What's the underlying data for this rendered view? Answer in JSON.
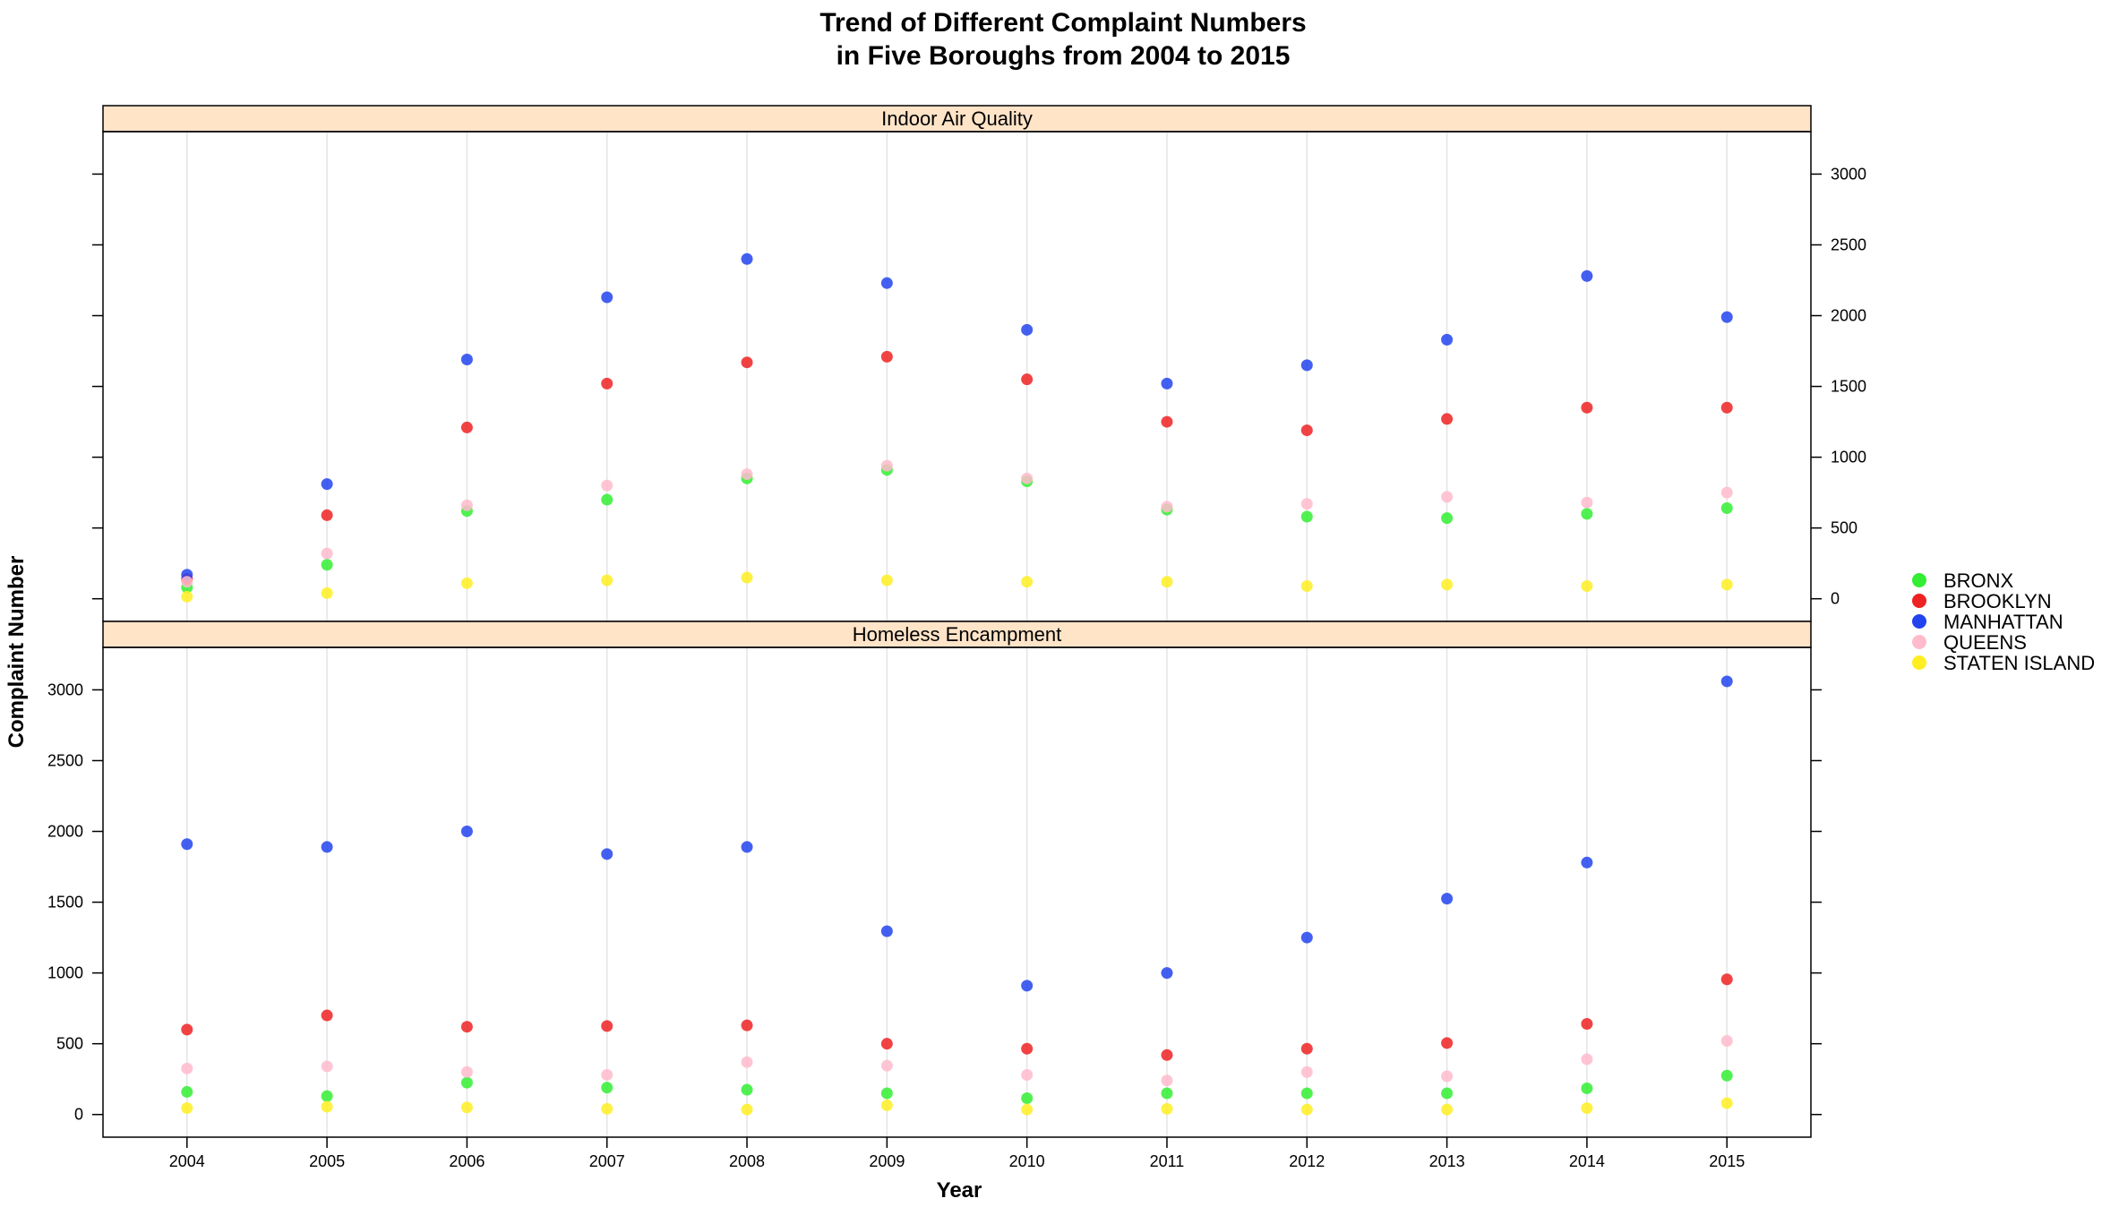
{
  "chart_data": {
    "type": "scatter",
    "title_line1": "Trend of Different Complaint Numbers",
    "title_line2": "in Five Boroughs from 2004 to 2015",
    "xlabel": "Year",
    "ylabel": "Complaint Number",
    "x": [
      2004,
      2005,
      2006,
      2007,
      2008,
      2009,
      2010,
      2011,
      2012,
      2013,
      2014,
      2015
    ],
    "y_ticks": [
      0,
      500,
      1000,
      1500,
      2000,
      2500,
      3000
    ],
    "ylim": [
      -160,
      3300
    ],
    "grid": "vertical",
    "legend_position": "right",
    "series": [
      {
        "name": "BRONX",
        "color": "#33ee33"
      },
      {
        "name": "BROOKLYN",
        "color": "#ee2222"
      },
      {
        "name": "MANHATTAN",
        "color": "#2244ee"
      },
      {
        "name": "QUEENS",
        "color": "#ffbbcc"
      },
      {
        "name": "STATEN ISLAND",
        "color": "#ffee22"
      }
    ],
    "panels": [
      {
        "name": "Indoor Air Quality",
        "values": {
          "BRONX": [
            80,
            240,
            620,
            700,
            850,
            910,
            830,
            630,
            580,
            570,
            600,
            640
          ],
          "BROOKLYN": [
            140,
            590,
            1210,
            1520,
            1670,
            1710,
            1550,
            1250,
            1190,
            1270,
            1350,
            1350
          ],
          "MANHATTAN": [
            170,
            810,
            1690,
            2130,
            2400,
            2230,
            1900,
            1520,
            1650,
            1830,
            2280,
            1990
          ],
          "QUEENS": [
            120,
            320,
            660,
            800,
            880,
            940,
            850,
            650,
            670,
            720,
            680,
            750
          ],
          "STATEN ISLAND": [
            15,
            40,
            110,
            130,
            150,
            130,
            120,
            120,
            90,
            100,
            90,
            100
          ]
        }
      },
      {
        "name": "Homeless Encampment",
        "values": {
          "BRONX": [
            160,
            130,
            225,
            190,
            175,
            150,
            115,
            150,
            150,
            150,
            185,
            275
          ],
          "BROOKLYN": [
            600,
            700,
            620,
            625,
            630,
            500,
            465,
            420,
            465,
            505,
            640,
            955
          ],
          "MANHATTAN": [
            1910,
            1890,
            2000,
            1840,
            1890,
            1295,
            910,
            1000,
            1250,
            1525,
            1780,
            3060
          ],
          "QUEENS": [
            325,
            340,
            300,
            280,
            370,
            345,
            280,
            240,
            300,
            270,
            390,
            520
          ],
          "STATEN ISLAND": [
            45,
            55,
            50,
            40,
            35,
            65,
            35,
            40,
            35,
            35,
            45,
            80
          ]
        }
      }
    ]
  }
}
